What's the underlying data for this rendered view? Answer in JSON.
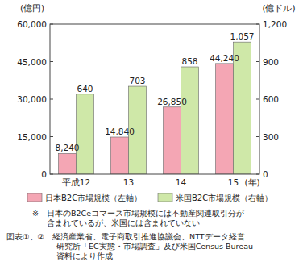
{
  "chart_data": {
    "type": "bar",
    "categories": [
      "平成12",
      "13",
      "14",
      "15"
    ],
    "x_label": "(年)",
    "y_label": "(億円)",
    "y2_label": "(億ドル)",
    "ylim": [
      0,
      60000
    ],
    "yticks": [
      0,
      {
        "value": 15000,
        "label": "15,000"
      },
      {
        "value": 30000,
        "label": "30,000"
      },
      {
        "value": 45000,
        "label": "45,000"
      },
      {
        "value": 60000,
        "label": "60,000"
      }
    ],
    "y2lim": [
      0,
      1200
    ],
    "y2ticks": [
      0,
      300,
      600,
      900,
      {
        "value": 1200,
        "label": "1,200"
      }
    ],
    "series": [
      {
        "name": "日本B2C市場規模（左軸）",
        "color": "#f4a6b4",
        "values": [
          8240,
          14840,
          26850,
          44240
        ],
        "value_labels": [
          "8,240",
          "14,840",
          "26,850",
          "44,240"
        ]
      },
      {
        "name": "米国B2C市場規模（右軸）",
        "color": "#cfe8a8",
        "axis": "y2",
        "values": [
          640,
          703,
          858,
          1057
        ],
        "value_labels": [
          "640",
          "703",
          "858",
          "1,057"
        ]
      }
    ],
    "data_labels": true,
    "legend": "bottom",
    "grid": false,
    "notes": [
      "※　日本のB2Ceコマース市場規模には不動産関連取引分が",
      "含まれているが、米国には含まれていない"
    ],
    "source": [
      "図表①、②　経済産業省、電子商取引推進協議会、NTTデータ経営",
      "研究所「EC実態・市場調査」及び米国Census Bureau",
      "資料により作成"
    ]
  }
}
